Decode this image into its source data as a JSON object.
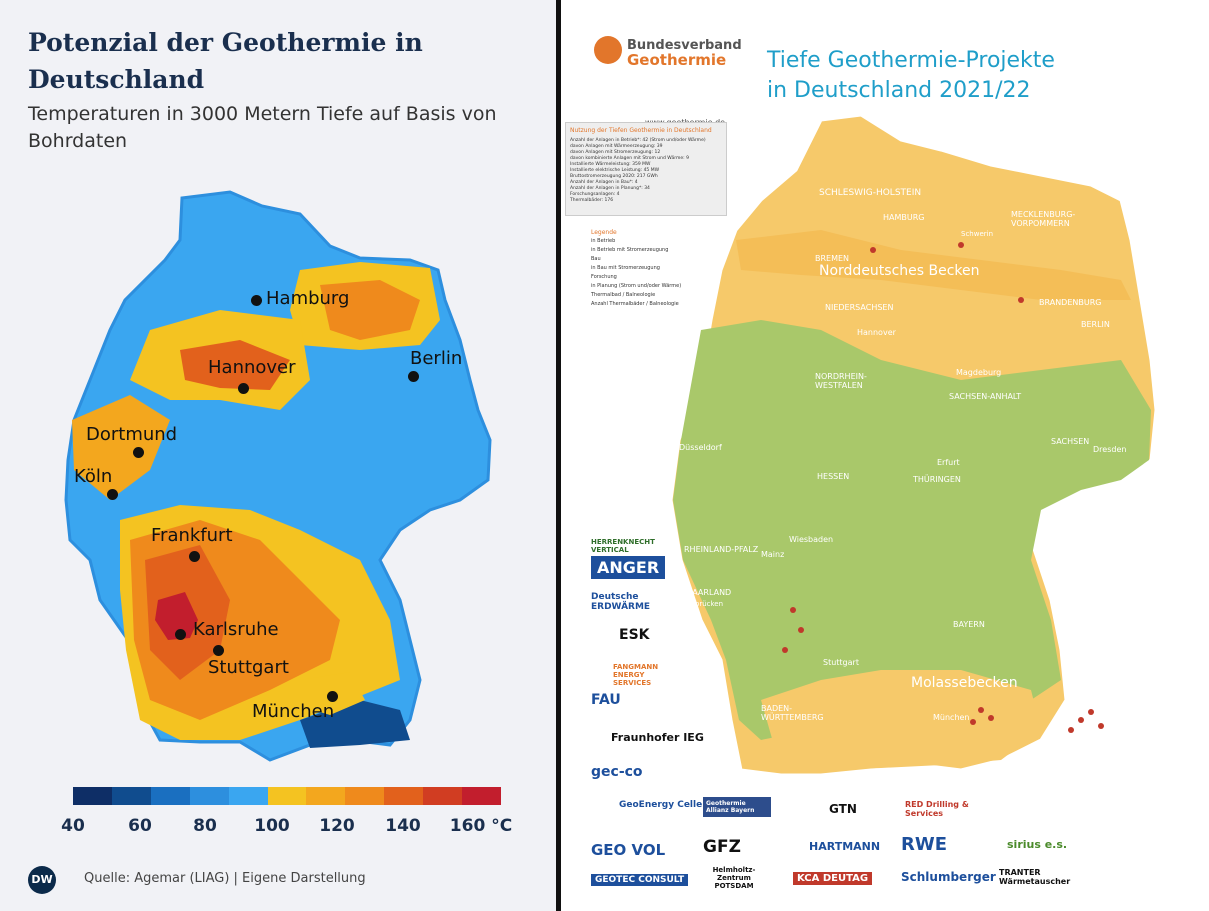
{
  "left": {
    "title": "Potenzial der Geothermie in Deutschland",
    "subtitle": "Temperaturen in 3000 Metern Tiefe auf Basis von Bohrdaten",
    "cities": [
      "Hamburg",
      "Berlin",
      "Hannover",
      "Dortmund",
      "Köln",
      "Frankfurt",
      "Karlsruhe",
      "Stuttgart",
      "München"
    ],
    "legend_ticks": [
      "40",
      "60",
      "80",
      "100",
      "120",
      "140",
      "160 °C"
    ],
    "legend_colors": [
      "#0e2e66",
      "#104c8e",
      "#1a6fc0",
      "#2d8fde",
      "#3aa6f0",
      "#f4c321",
      "#f3a71e",
      "#ef8a1c",
      "#e2611c",
      "#d13d22",
      "#c21e2d"
    ],
    "logo": "DW",
    "source": "Quelle: Agemar (LIAG) | Eigene Darstellung"
  },
  "right": {
    "association_line1": "Bundesverband",
    "association_line2": "Geothermie",
    "website": "www.geothermie.de",
    "title": "Tiefe Geothermie-Projekte in Deutschland 2021/22",
    "usage_title": "Nutzung der Tiefen Geothermie in Deutschland",
    "usage_lines": [
      "Anzahl der Anlagen in Betrieb*: 42 (Strom und/oder Wärme)",
      "davon Anlagen mit Wärmeerzeugung: 39",
      "davon Anlagen mit Stromerzeugung: 12",
      "davon kombinierte Anlagen mit Strom und Wärme: 9",
      "Installierte Wärmeleistung: 359 MW",
      "Installierte elektrische Leistung: 45 MW",
      "Bruttostromerzeugung 2020: 217 GWh",
      "Anzahl der Anlagen in Bau*: 4",
      "Anzahl der Anlagen in Planung*: 34",
      "Forschungsanlagen: 4",
      "Thermalbäder: 176"
    ],
    "legend_title": "Legende",
    "legend_items": [
      "in Betrieb",
      "in Betrieb mit Stromerzeugung",
      "Bau",
      "in Bau mit Stromerzeugung",
      "Forschung",
      "in Planung (Strom und/oder Wärme)",
      "Thermalbad / Balneologie",
      "Anzahl Thermalbäder / Balneologie"
    ],
    "regions": [
      "SCHLESWIG-HOLSTEIN",
      "HAMBURG",
      "MECKLENBURG-VORPOMMERN",
      "BREMEN",
      "Norddeutsches Becken",
      "NIEDERSACHSEN",
      "BRANDENBURG",
      "BERLIN",
      "Hannover",
      "Schwerin",
      "Magdeburg",
      "NORDRHEIN-WESTFALEN",
      "SACHSEN-ANHALT",
      "Düsseldorf",
      "SACHSEN",
      "Dresden",
      "HESSEN",
      "THÜRINGEN",
      "Erfurt",
      "RHEINLAND-PFALZ",
      "Wiesbaden",
      "Mainz",
      "SAARLAND",
      "Saarbrücken",
      "BAYERN",
      "BADEN-WÜRTTEMBERG",
      "Molassebecken",
      "München",
      "Stuttgart"
    ],
    "sponsors": [
      "HERRENKNECHT VERTICAL",
      "ANGER",
      "Deutsche ERDWÄRME",
      "ESK",
      "FANGMANN ENERGY SERVICES",
      "FAU",
      "Fraunhofer IEG",
      "gec-co",
      "GeoEnergy Celle e.V.",
      "GEO VOL",
      "GEOTEC CONSULT",
      "Geothermie Allianz Bayern",
      "GFZ",
      "Helmholtz-Zentrum POTSDAM",
      "GTN",
      "RED Drilling & Services",
      "HARTMANN",
      "RWE",
      "sirius e.s.",
      "KCA DEUTAG",
      "Schlumberger",
      "TRANTER Wärmetauscher"
    ]
  }
}
